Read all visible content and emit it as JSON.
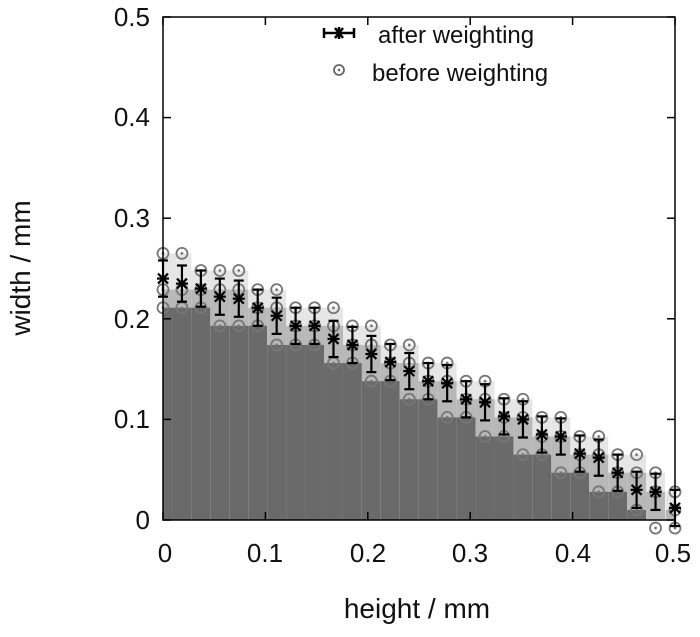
{
  "chart_data": {
    "type": "scatter",
    "xlabel": "height / mm",
    "ylabel": "width / mm",
    "xlim": [
      0,
      0.5
    ],
    "ylim": [
      0,
      0.5
    ],
    "xticks": [
      "0",
      "0.1",
      "0.2",
      "0.3",
      "0.4",
      "0.5"
    ],
    "yticks": [
      "0",
      "0.1",
      "0.2",
      "0.3",
      "0.4",
      "0.5"
    ],
    "grid": false,
    "legend_position": "top",
    "background": "grayscale heatmap under the boundary",
    "series": [
      {
        "name": "after weighting",
        "marker": "star with error bars",
        "color": "#000000",
        "x": [
          0,
          0.0185,
          0.037,
          0.0555,
          0.074,
          0.0925,
          0.111,
          0.1295,
          0.148,
          0.1665,
          0.185,
          0.2035,
          0.222,
          0.2405,
          0.259,
          0.2775,
          0.296,
          0.3145,
          0.333,
          0.3515,
          0.37,
          0.3885,
          0.407,
          0.4255,
          0.444,
          0.4625,
          0.481,
          0.5
        ],
        "y": [
          0.24,
          0.235,
          0.23,
          0.222,
          0.22,
          0.211,
          0.203,
          0.193,
          0.193,
          0.18,
          0.174,
          0.165,
          0.157,
          0.148,
          0.138,
          0.136,
          0.12,
          0.117,
          0.103,
          0.1,
          0.085,
          0.083,
          0.066,
          0.062,
          0.047,
          0.03,
          0.028,
          0.012
        ],
        "yerr": 0.018
      },
      {
        "name": "before weighting",
        "marker": "open circle",
        "color": "#777777",
        "x": [
          0,
          0.0185,
          0.037,
          0.0555,
          0.074,
          0.0925,
          0.111,
          0.1295,
          0.148,
          0.1665,
          0.185,
          0.2035,
          0.222,
          0.2405,
          0.259,
          0.2775,
          0.296,
          0.3145,
          0.333,
          0.3515,
          0.37,
          0.3885,
          0.407,
          0.4255,
          0.444,
          0.4625,
          0.481,
          0.5
        ],
        "y_top": [
          0.265,
          0.265,
          0.248,
          0.248,
          0.248,
          0.229,
          0.229,
          0.211,
          0.211,
          0.211,
          0.193,
          0.193,
          0.174,
          0.174,
          0.156,
          0.156,
          0.138,
          0.138,
          0.12,
          0.12,
          0.102,
          0.102,
          0.083,
          0.083,
          0.065,
          0.065,
          0.047,
          0.028
        ],
        "y_mid": [
          0.229,
          0.229,
          0.229,
          0.229,
          0.229,
          0.211,
          0.211,
          0.193,
          0.193,
          0.193,
          0.174,
          0.174,
          0.156,
          0.156,
          0.138,
          0.138,
          0.12,
          0.12,
          0.102,
          0.102,
          0.083,
          0.083,
          0.065,
          0.065,
          0.047,
          0.047,
          0.028,
          0.01
        ],
        "y_bottom": [
          0.211,
          0.211,
          0.211,
          0.193,
          0.193,
          0.193,
          0.174,
          0.174,
          0.174,
          0.156,
          0.156,
          0.138,
          0.138,
          0.12,
          0.12,
          0.102,
          0.102,
          0.083,
          0.083,
          0.065,
          0.065,
          0.047,
          0.047,
          0.028,
          0.028,
          0.01,
          -0.008,
          -0.008
        ]
      }
    ]
  }
}
